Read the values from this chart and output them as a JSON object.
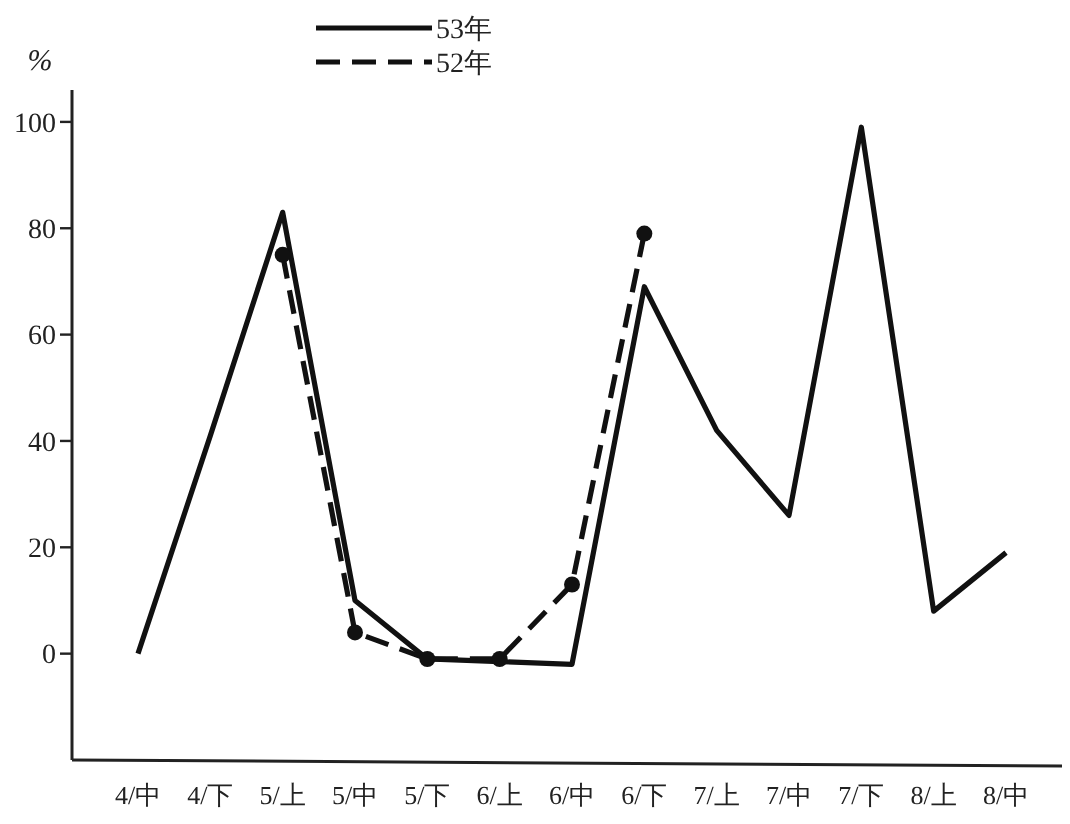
{
  "chart_data": {
    "type": "line",
    "ylabel": "%",
    "categories": [
      "4/中",
      "4/下",
      "5/上",
      "5/中",
      "5/下",
      "6/上",
      "6/中",
      "6/下",
      "7/上",
      "7/中",
      "7/下",
      "8/上",
      "8/中"
    ],
    "series": [
      {
        "name": "53年",
        "color": "#111111",
        "line_style": "solid",
        "marker": "none",
        "values": [
          0,
          41,
          83,
          10,
          -1,
          -1.5,
          -2,
          69,
          42,
          26,
          99,
          8,
          19
        ]
      },
      {
        "name": "52年",
        "color": "#111111",
        "line_style": "dashed",
        "marker": "circle",
        "values": [
          null,
          null,
          75,
          4,
          -1,
          -1,
          13,
          79,
          null,
          null,
          null,
          null,
          null
        ]
      }
    ],
    "ylim": [
      -20,
      106
    ],
    "yticks": [
      0,
      20,
      40,
      60,
      80,
      100
    ],
    "grid": false,
    "legend": "top"
  }
}
